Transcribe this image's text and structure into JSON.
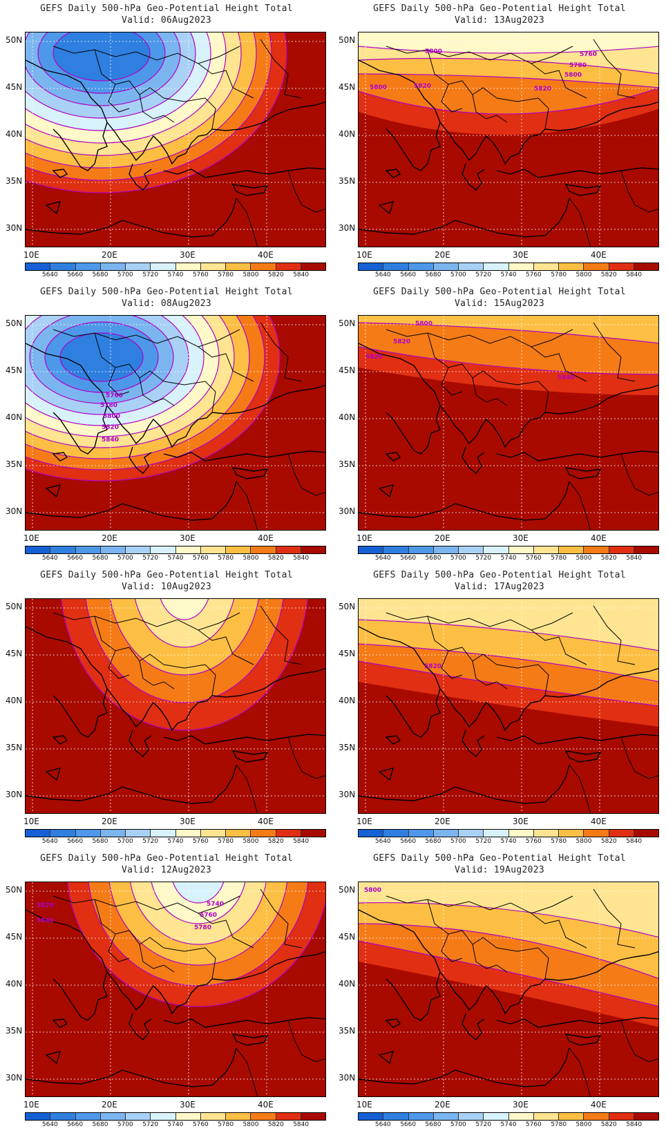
{
  "figure_title": "GEFS Daily 500-hPa Geo-Potential Height Total",
  "latitude_labels": [
    "50N",
    "45N",
    "40N",
    "35N",
    "30N"
  ],
  "longitude_labels": [
    "10E",
    "20E",
    "30E",
    "40E"
  ],
  "colorbar": {
    "levels": [
      "5640",
      "5660",
      "5680",
      "5700",
      "5720",
      "5740",
      "5760",
      "5780",
      "5800",
      "5820",
      "5840"
    ],
    "colors": [
      "#1560d4",
      "#2f7fe0",
      "#4e98ea",
      "#7bb5f0",
      "#a9d1f6",
      "#d8f2fb",
      "#fff8c8",
      "#ffe591",
      "#fcbf44",
      "#f57b17",
      "#e02f12",
      "#a80a00"
    ]
  },
  "contour_color": "#b000c8",
  "panels": [
    {
      "title": "GEFS Daily 500-hPa Geo-Potential Height Total",
      "valid": "Valid: 06Aug2023",
      "contour_labels": []
    },
    {
      "title": "GEFS Daily 500-hPa Geo-Potential Height Total",
      "valid": "Valid: 13Aug2023",
      "contour_labels": [
        "5800",
        "5760",
        "5780",
        "5800",
        "5820",
        "5820",
        "5800"
      ]
    },
    {
      "title": "GEFS Daily 500-hPa Geo-Potential Height Total",
      "valid": "Valid: 08Aug2023",
      "contour_labels": [
        "5760",
        "5780",
        "5800",
        "5820",
        "5840"
      ]
    },
    {
      "title": "GEFS Daily 500-hPa Geo-Potential Height Total",
      "valid": "Valid: 15Aug2023",
      "contour_labels": [
        "5800",
        "5820",
        "5820",
        "5840"
      ]
    },
    {
      "title": "GEFS Daily 500-hPa Geo-Potential Height Total",
      "valid": "Valid: 10Aug2023",
      "contour_labels": []
    },
    {
      "title": "GEFS Daily 500-hPa Geo-Potential Height Total",
      "valid": "Valid: 17Aug2023",
      "contour_labels": [
        "5820"
      ]
    },
    {
      "title": "GEFS Daily 500-hPa Geo-Potential Height Total",
      "valid": "Valid: 12Aug2023",
      "contour_labels": [
        "5740",
        "5760",
        "5780",
        "5820",
        "5840"
      ]
    },
    {
      "title": "GEFS Daily 500-hPa Geo-Potential Height Total",
      "valid": "Valid: 19Aug2023",
      "contour_labels": [
        "5800"
      ]
    }
  ]
}
